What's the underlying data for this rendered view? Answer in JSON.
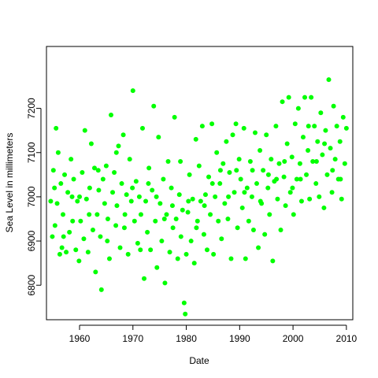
{
  "chart_data": {
    "type": "scatter",
    "title": "",
    "xlabel": "Date",
    "ylabel": "Sea Level in millimeters",
    "xlim": [
      1953.8,
      2011.2
    ],
    "ylim": [
      6722,
      7340
    ],
    "x_ticks": [
      1960,
      1970,
      1980,
      1990,
      2000,
      2010
    ],
    "x_tick_labels": [
      "1960",
      "1970",
      "1980",
      "1990",
      "2000",
      "2010"
    ],
    "y_ticks": [
      6800,
      6900,
      7000,
      7100,
      7200
    ],
    "y_tick_labels": [
      "6800",
      "6900",
      "7000",
      "7100",
      "7200"
    ],
    "grid": false,
    "legend": "none",
    "point_color": "#00ff00",
    "series": [
      {
        "points": [
          [
            1954.6,
            6990
          ],
          [
            1954.9,
            6910
          ],
          [
            1955.1,
            7060
          ],
          [
            1955.4,
            6935
          ],
          [
            1955.6,
            7155
          ],
          [
            1955.8,
            6985
          ],
          [
            1956.0,
            7100
          ],
          [
            1956.3,
            6870
          ],
          [
            1956.5,
            7030
          ],
          [
            1956.7,
            6885
          ],
          [
            1956.9,
            6960
          ],
          [
            1957.2,
            7050
          ],
          [
            1957.5,
            6875
          ],
          [
            1957.8,
            7010
          ],
          [
            1958.1,
            6920
          ],
          [
            1958.4,
            7085
          ],
          [
            1958.7,
            6945
          ],
          [
            1958.9,
            7040
          ],
          [
            1959.3,
            6880
          ],
          [
            1959.6,
            6990
          ],
          [
            1959.9,
            6855
          ],
          [
            1960.2,
            6945
          ],
          [
            1960.5,
            7055
          ],
          [
            1960.8,
            6905
          ],
          [
            1961.0,
            7150
          ],
          [
            1961.3,
            6995
          ],
          [
            1961.6,
            6875
          ],
          [
            1961.9,
            7020
          ],
          [
            1962.2,
            7120
          ],
          [
            1962.5,
            6925
          ],
          [
            1962.8,
            7065
          ],
          [
            1963.0,
            6830
          ],
          [
            1963.3,
            6960
          ],
          [
            1963.6,
            7015
          ],
          [
            1963.9,
            6910
          ],
          [
            1964.1,
            6790
          ],
          [
            1964.4,
            7040
          ],
          [
            1964.7,
            6985
          ],
          [
            1965.0,
            7070
          ],
          [
            1965.3,
            6950
          ],
          [
            1965.6,
            6860
          ],
          [
            1965.9,
            7185
          ],
          [
            1966.2,
            7010
          ],
          [
            1966.5,
            7055
          ],
          [
            1966.8,
            6935
          ],
          [
            1967.0,
            6980
          ],
          [
            1967.3,
            7115
          ],
          [
            1967.6,
            6885
          ],
          [
            1967.9,
            7030
          ],
          [
            1968.2,
            7140
          ],
          [
            1968.5,
            6960
          ],
          [
            1968.8,
            7005
          ],
          [
            1969.1,
            6870
          ],
          [
            1969.4,
            7085
          ],
          [
            1969.7,
            6990
          ],
          [
            1970.0,
            7240
          ],
          [
            1970.3,
            6945
          ],
          [
            1970.6,
            7035
          ],
          [
            1970.9,
            6895
          ],
          [
            1971.2,
            7000
          ],
          [
            1971.5,
            6960
          ],
          [
            1971.8,
            7155
          ],
          [
            1972.1,
            6815
          ],
          [
            1972.4,
            6990
          ],
          [
            1972.7,
            6920
          ],
          [
            1973.0,
            7065
          ],
          [
            1973.3,
            6880
          ],
          [
            1973.6,
            7015
          ],
          [
            1973.9,
            7205
          ],
          [
            1974.2,
            6945
          ],
          [
            1974.5,
            6840
          ],
          [
            1974.8,
            7135
          ],
          [
            1975.1,
            6985
          ],
          [
            1975.4,
            6900
          ],
          [
            1975.7,
            7040
          ],
          [
            1976.0,
            6805
          ],
          [
            1976.3,
            6960
          ],
          [
            1976.6,
            7080
          ],
          [
            1976.9,
            6875
          ],
          [
            1977.2,
            7020
          ],
          [
            1977.5,
            6930
          ],
          [
            1977.8,
            7180
          ],
          [
            1978.1,
            6950
          ],
          [
            1978.4,
            6860
          ],
          [
            1978.7,
            7005
          ],
          [
            1979.0,
            6910
          ],
          [
            1979.3,
            6970
          ],
          [
            1979.6,
            6760
          ],
          [
            1979.8,
            6735
          ],
          [
            1980.0,
            6870
          ],
          [
            1980.3,
            6965
          ],
          [
            1980.6,
            7050
          ],
          [
            1980.9,
            6900
          ],
          [
            1981.2,
            6995
          ],
          [
            1981.5,
            6850
          ],
          [
            1981.8,
            7130
          ],
          [
            1982.1,
            6945
          ],
          [
            1982.4,
            7070
          ],
          [
            1982.7,
            6990
          ],
          [
            1983.0,
            7160
          ],
          [
            1983.3,
            6915
          ],
          [
            1983.6,
            7005
          ],
          [
            1983.9,
            6880
          ],
          [
            1984.2,
            7045
          ],
          [
            1984.5,
            6960
          ],
          [
            1984.8,
            7165
          ],
          [
            1985.1,
            6870
          ],
          [
            1985.4,
            7000
          ],
          [
            1985.7,
            7100
          ],
          [
            1986.0,
            6945
          ],
          [
            1986.3,
            7030
          ],
          [
            1986.6,
            6905
          ],
          [
            1986.9,
            7075
          ],
          [
            1987.2,
            6985
          ],
          [
            1987.5,
            7125
          ],
          [
            1987.8,
            6950
          ],
          [
            1988.1,
            7055
          ],
          [
            1988.4,
            6860
          ],
          [
            1988.7,
            7140
          ],
          [
            1989.0,
            7010
          ],
          [
            1989.3,
            7165
          ],
          [
            1989.6,
            6930
          ],
          [
            1989.9,
            7085
          ],
          [
            1990.2,
            7040
          ],
          [
            1990.5,
            6975
          ],
          [
            1990.8,
            7155
          ],
          [
            1991.1,
            6860
          ],
          [
            1991.4,
            7020
          ],
          [
            1991.7,
            6945
          ],
          [
            1992.0,
            7080
          ],
          [
            1992.3,
            7000
          ],
          [
            1992.6,
            6925
          ],
          [
            1992.9,
            7145
          ],
          [
            1993.2,
            7030
          ],
          [
            1993.5,
            6885
          ],
          [
            1993.8,
            7105
          ],
          [
            1994.1,
            6985
          ],
          [
            1994.4,
            7060
          ],
          [
            1994.7,
            6915
          ],
          [
            1995.0,
            7140
          ],
          [
            1995.3,
            7020
          ],
          [
            1995.6,
            6960
          ],
          [
            1995.9,
            7085
          ],
          [
            1996.2,
            6855
          ],
          [
            1996.5,
            7035
          ],
          [
            1996.8,
            7160
          ],
          [
            1997.1,
            6995
          ],
          [
            1997.4,
            7075
          ],
          [
            1997.7,
            6925
          ],
          [
            1998.0,
            7215
          ],
          [
            1998.3,
            7045
          ],
          [
            1998.6,
            6980
          ],
          [
            1998.9,
            7120
          ],
          [
            1999.2,
            7225
          ],
          [
            1999.5,
            7010
          ],
          [
            1999.8,
            7090
          ],
          [
            2000.1,
            6960
          ],
          [
            2000.4,
            7165
          ],
          [
            2000.7,
            7040
          ],
          [
            2001.0,
            7200
          ],
          [
            2001.3,
            7075
          ],
          [
            2001.6,
            6990
          ],
          [
            2001.9,
            7135
          ],
          [
            2002.2,
            7225
          ],
          [
            2002.5,
            7050
          ],
          [
            2002.8,
            7105
          ],
          [
            2003.1,
            6995
          ],
          [
            2003.4,
            7225
          ],
          [
            2003.7,
            7080
          ],
          [
            2004.0,
            7160
          ],
          [
            2004.3,
            7030
          ],
          [
            2004.6,
            7125
          ],
          [
            2004.9,
            7000
          ],
          [
            2005.2,
            7190
          ],
          [
            2005.5,
            7095
          ],
          [
            2005.8,
            6975
          ],
          [
            2006.1,
            7150
          ],
          [
            2006.4,
            7050
          ],
          [
            2006.7,
            7265
          ],
          [
            2007.0,
            7110
          ],
          [
            2007.3,
            7010
          ],
          [
            2007.6,
            7205
          ],
          [
            2007.9,
            7085
          ],
          [
            2008.2,
            7160
          ],
          [
            2008.5,
            7040
          ],
          [
            2008.8,
            7125
          ],
          [
            2009.1,
            6995
          ],
          [
            2009.4,
            7180
          ],
          [
            2009.7,
            7075
          ],
          [
            2010.0,
            7155
          ],
          [
            1955.3,
            7020
          ],
          [
            1957.0,
            6910
          ],
          [
            1958.6,
            7000
          ],
          [
            1960.0,
            7000
          ],
          [
            1961.8,
            6960
          ],
          [
            1963.5,
            7060
          ],
          [
            1965.2,
            6900
          ],
          [
            1966.9,
            7100
          ],
          [
            1968.4,
            6930
          ],
          [
            1969.9,
            7020
          ],
          [
            1971.4,
            6880
          ],
          [
            1972.9,
            7030
          ],
          [
            1974.4,
            7000
          ],
          [
            1975.9,
            6950
          ],
          [
            1977.4,
            6980
          ],
          [
            1978.9,
            7080
          ],
          [
            1980.4,
            6990
          ],
          [
            1981.9,
            6930
          ],
          [
            1983.4,
            6980
          ],
          [
            1984.9,
            7030
          ],
          [
            1986.4,
            7060
          ],
          [
            1987.9,
            7000
          ],
          [
            1989.4,
            7060
          ],
          [
            1990.9,
            7010
          ],
          [
            1992.4,
            7060
          ],
          [
            1993.9,
            6990
          ],
          [
            1995.4,
            7050
          ],
          [
            1996.9,
            7040
          ],
          [
            1998.4,
            7080
          ],
          [
            1999.9,
            7020
          ],
          [
            2001.4,
            7040
          ],
          [
            2002.9,
            7160
          ],
          [
            2004.4,
            7080
          ],
          [
            2005.9,
            7120
          ],
          [
            2007.4,
            7060
          ],
          [
            2008.9,
            7040
          ]
        ]
      }
    ]
  }
}
